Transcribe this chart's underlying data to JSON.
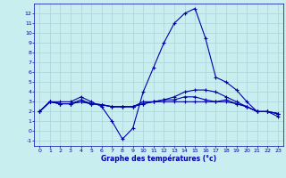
{
  "title": "Graphe des températures (°c)",
  "background_color": "#c8eef0",
  "grid_color": "#aad4d8",
  "line_color": "#0000aa",
  "marker": "+",
  "markersize": 3,
  "linewidth": 0.8,
  "xlim": [
    -0.5,
    23.5
  ],
  "ylim": [
    -1.5,
    13.0
  ],
  "yticks": [
    -1,
    0,
    1,
    2,
    3,
    4,
    5,
    6,
    7,
    8,
    9,
    10,
    11,
    12
  ],
  "xticks": [
    0,
    1,
    2,
    3,
    4,
    5,
    6,
    7,
    8,
    9,
    10,
    11,
    12,
    13,
    14,
    15,
    16,
    17,
    18,
    19,
    20,
    21,
    22,
    23
  ],
  "series": [
    {
      "x": [
        0,
        1,
        2,
        3,
        4,
        5,
        6,
        7,
        8,
        9,
        10,
        11,
        12,
        13,
        14,
        15,
        16,
        17,
        18,
        19,
        20,
        21,
        22,
        23
      ],
      "y": [
        2.0,
        3.0,
        3.0,
        3.0,
        3.5,
        3.0,
        2.5,
        1.0,
        -0.8,
        0.3,
        4.0,
        6.5,
        9.0,
        11.0,
        12.0,
        12.5,
        9.5,
        5.5,
        5.0,
        4.2,
        3.0,
        2.0,
        2.0,
        1.5
      ]
    },
    {
      "x": [
        0,
        1,
        2,
        3,
        4,
        5,
        6,
        7,
        8,
        9,
        10,
        11,
        12,
        13,
        14,
        15,
        16,
        17,
        18,
        19,
        20,
        21,
        22,
        23
      ],
      "y": [
        2.0,
        3.0,
        2.8,
        2.8,
        3.0,
        2.8,
        2.7,
        2.5,
        2.5,
        2.5,
        2.8,
        3.0,
        3.2,
        3.5,
        4.0,
        4.2,
        4.2,
        4.0,
        3.5,
        3.0,
        2.5,
        2.0,
        2.0,
        1.8
      ]
    },
    {
      "x": [
        0,
        1,
        2,
        3,
        4,
        5,
        6,
        7,
        8,
        9,
        10,
        11,
        12,
        13,
        14,
        15,
        16,
        17,
        18,
        19,
        20,
        21,
        22,
        23
      ],
      "y": [
        2.0,
        3.0,
        2.8,
        2.8,
        3.2,
        2.8,
        2.7,
        2.5,
        2.5,
        2.5,
        3.0,
        3.0,
        3.2,
        3.2,
        3.5,
        3.5,
        3.2,
        3.0,
        3.0,
        2.8,
        2.5,
        2.0,
        2.0,
        1.8
      ]
    },
    {
      "x": [
        0,
        1,
        2,
        3,
        4,
        5,
        6,
        7,
        8,
        9,
        10,
        11,
        12,
        13,
        14,
        15,
        16,
        17,
        18,
        19,
        20,
        21,
        22,
        23
      ],
      "y": [
        2.0,
        3.0,
        2.8,
        2.8,
        3.0,
        2.8,
        2.7,
        2.5,
        2.5,
        2.5,
        2.8,
        3.0,
        3.0,
        3.0,
        3.0,
        3.0,
        3.0,
        3.0,
        3.2,
        2.8,
        2.5,
        2.0,
        2.0,
        1.8
      ]
    }
  ]
}
